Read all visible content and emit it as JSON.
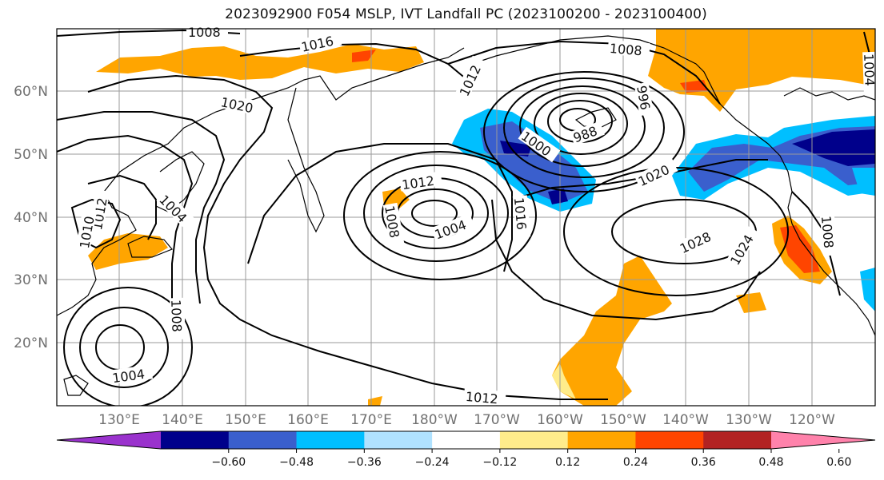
{
  "title": "2023092900 F054 MSLP, IVT Landfall PC (2023100200 - 2023100400)",
  "map": {
    "lat_labels": [
      "60°N",
      "50°N",
      "40°N",
      "30°N",
      "20°N"
    ],
    "lon_labels": [
      "130°E",
      "140°E",
      "150°E",
      "160°E",
      "170°E",
      "180°W",
      "170°W",
      "160°W",
      "150°W",
      "140°W",
      "130°W",
      "120°W"
    ],
    "isobar_labels": [
      "1008",
      "1016",
      "1020",
      "1012",
      "996",
      "988",
      "1000",
      "1008",
      "1004",
      "1012",
      "1010",
      "1012",
      "1008",
      "1004",
      "1016",
      "1020",
      "1028",
      "1024",
      "1008",
      "1008",
      "1004",
      "1012",
      "1004"
    ],
    "colors": {
      "purple": "#9a32cd",
      "navy": "#00008b",
      "royal": "#3a5fcd",
      "sky": "#00bfff",
      "pale_blue": "#b0e2ff",
      "white": "#ffffff",
      "pale_yellow": "#ffec8b",
      "orange": "#ffa500",
      "red_orange": "#ff4500",
      "firebrick": "#b22222",
      "pink": "#ff82ab"
    }
  },
  "colorbar": {
    "tick_labels": [
      "−0.60",
      "−0.48",
      "−0.36",
      "−0.24",
      "−0.12",
      "0.12",
      "0.24",
      "0.36",
      "0.48",
      "0.60"
    ],
    "colors": [
      "#9a32cd",
      "#00008b",
      "#3a5fcd",
      "#00bfff",
      "#b0e2ff",
      "#ffffff",
      "#ffec8b",
      "#ffa500",
      "#ff4500",
      "#b22222",
      "#ff82ab"
    ]
  }
}
